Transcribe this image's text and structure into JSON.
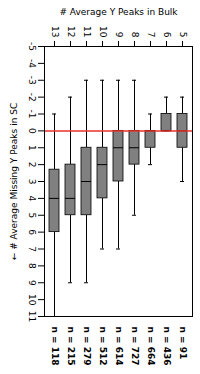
{
  "chart_data": {
    "type": "box",
    "x_label": "# Average Y Peaks in Bulk",
    "y_label": "# Average Missing Y Peaks in SC",
    "categories": [
      "13",
      "12",
      "11",
      "10",
      "9",
      "8",
      "7",
      "6",
      "5"
    ],
    "whisker_low": [
      -1,
      -2,
      -3,
      -3,
      -3,
      -3,
      -1,
      -2,
      -2
    ],
    "q1": [
      2.3,
      2,
      1,
      1,
      0,
      0,
      0,
      -1,
      -1
    ],
    "median": [
      4,
      4,
      3,
      2,
      1,
      1,
      0,
      0,
      0
    ],
    "q3": [
      6,
      5,
      5,
      4,
      3,
      2,
      1,
      0,
      1
    ],
    "whisker_high": [
      11,
      9,
      9,
      7,
      7,
      5,
      2,
      0,
      3
    ],
    "n_labels": [
      "n = 118",
      "n = 215",
      "n = 279",
      "n = 512",
      "n = 614",
      "n = 727",
      "n = 664",
      "n = 436",
      "n = 91"
    ],
    "color": "#808080",
    "reference_line": {
      "value": 0,
      "color": "#e8302a"
    },
    "ylim": [
      -5,
      11
    ],
    "yticks": [
      -5,
      -4,
      -3,
      -2,
      -1,
      0,
      1,
      2,
      3,
      4,
      5,
      6,
      7,
      8,
      9,
      10,
      11
    ],
    "grid": false
  }
}
